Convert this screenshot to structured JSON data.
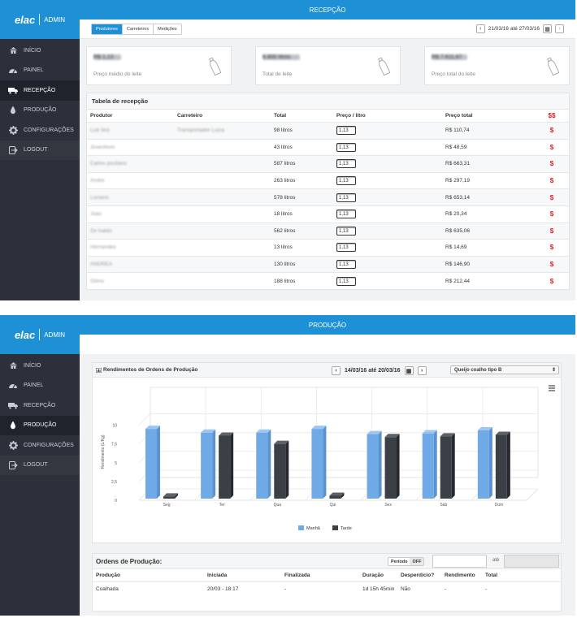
{
  "brand": {
    "logo": "elac",
    "admin": "ADMIN"
  },
  "nav": [
    {
      "label": "INÍCIO",
      "icon": "home-icon"
    },
    {
      "label": "PAINEL",
      "icon": "dashboard-icon"
    },
    {
      "label": "RECEPÇÃO",
      "icon": "truck-icon"
    },
    {
      "label": "PRODUÇÃO",
      "icon": "drop-icon"
    },
    {
      "label": "CONFIGURAÇÕES",
      "icon": "gear-icon"
    },
    {
      "label": "LOGOUT",
      "icon": "logout-icon"
    }
  ],
  "screen1": {
    "title": "RECEPÇÃO",
    "tabs": [
      "Produtores",
      "Carreteiros",
      "Medições"
    ],
    "date_range": "21/03/16 até 27/03/16",
    "cards": [
      {
        "value": "R$ 1,13",
        "caption": "Preço médio do leite"
      },
      {
        "value": "6.800 litros",
        "caption": "Total de leite"
      },
      {
        "value": "R$ 7.611,67",
        "caption": "Preço total do leite"
      }
    ],
    "table": {
      "title": "Tabela de recepção",
      "headers": [
        "Produtor",
        "Carreteiro",
        "Total",
        "Preço / litro",
        "Preço total",
        "$$"
      ],
      "rows": [
        {
          "produtor": "Luiz lino",
          "carreteiro": "Transportador Luiza",
          "total": "98 litros",
          "preco": "1,13",
          "preco_total": "R$ 110,74",
          "acao": "$"
        },
        {
          "produtor": "Josecilson",
          "carreteiro": "",
          "total": "43 litros",
          "preco": "1,13",
          "preco_total": "R$ 48,59",
          "acao": "$"
        },
        {
          "produtor": "Carlos pocilano",
          "carreteiro": "",
          "total": "587 litros",
          "preco": "1,13",
          "preco_total": "R$ 663,31",
          "acao": "$"
        },
        {
          "produtor": "Andre",
          "carreteiro": "",
          "total": "263 litros",
          "preco": "1,13",
          "preco_total": "R$ 297,19",
          "acao": "$"
        },
        {
          "produtor": "Luciano",
          "carreteiro": "",
          "total": "578 litros",
          "preco": "1,13",
          "preco_total": "R$ 653,14",
          "acao": "$"
        },
        {
          "produtor": "Joao",
          "carreteiro": "",
          "total": "18 litros",
          "preco": "1,13",
          "preco_total": "R$ 20,34",
          "acao": "$"
        },
        {
          "produtor": "Ze Ivaldo",
          "carreteiro": "",
          "total": "562 litros",
          "preco": "1,13",
          "preco_total": "R$ 635,06",
          "acao": "$"
        },
        {
          "produtor": "Hernandes",
          "carreteiro": "",
          "total": "13 litros",
          "preco": "1,13",
          "preco_total": "R$ 14,69",
          "acao": "$"
        },
        {
          "produtor": "ANDREA",
          "carreteiro": "",
          "total": "130 litros",
          "preco": "1,13",
          "preco_total": "R$ 146,90",
          "acao": "$"
        },
        {
          "produtor": "Gilmo",
          "carreteiro": "",
          "total": "188 litros",
          "preco": "1,13",
          "preco_total": "R$ 212,44",
          "acao": "$"
        }
      ]
    }
  },
  "screen2": {
    "title": "PRODUÇÃO",
    "chart_panel": {
      "title": "Rendimentos de Ordens de Produção",
      "date_range": "14/03/16 até 20/03/16",
      "select_value": "Queijo coalho tipo B"
    },
    "orders": {
      "title": "Ordens de Produção:",
      "periodo_label": "Período",
      "periodo_state": "OFF",
      "ate": "até",
      "headers": [
        "Produção",
        "Iniciada",
        "Finalizada",
        "Duração",
        "Desperdício?",
        "Rendimento",
        "Total"
      ],
      "rows": [
        {
          "producao": "Coalhada",
          "iniciada": "20/03 - 18:17",
          "finalizada": "-",
          "duracao": "1d 15h 45min",
          "desperdicio": "Não",
          "rendimento": "-",
          "total": "-"
        }
      ]
    }
  },
  "chart_data": {
    "type": "bar",
    "title": "Rendimentos de Ordens de Produção",
    "categories": [
      "Seg",
      "Ter",
      "Qua",
      "Qui",
      "Sex",
      "Sáb",
      "Dom"
    ],
    "series": [
      {
        "name": "Manhã",
        "color": "#6fa9e6",
        "values": [
          9.5,
          9,
          9,
          9.5,
          8.8,
          8.9,
          9.3
        ]
      },
      {
        "name": "Tarde",
        "color": "#3b3f46",
        "values": [
          0.5,
          8.6,
          7.5,
          0.6,
          8.4,
          8.5,
          8.7
        ]
      }
    ],
    "ylabel": "Rendimento (L/Kg)",
    "yticks": [
      "0",
      "2,5",
      "5",
      "7,5",
      "10"
    ],
    "ylim": [
      0,
      12
    ],
    "legend": "bottom-center"
  }
}
